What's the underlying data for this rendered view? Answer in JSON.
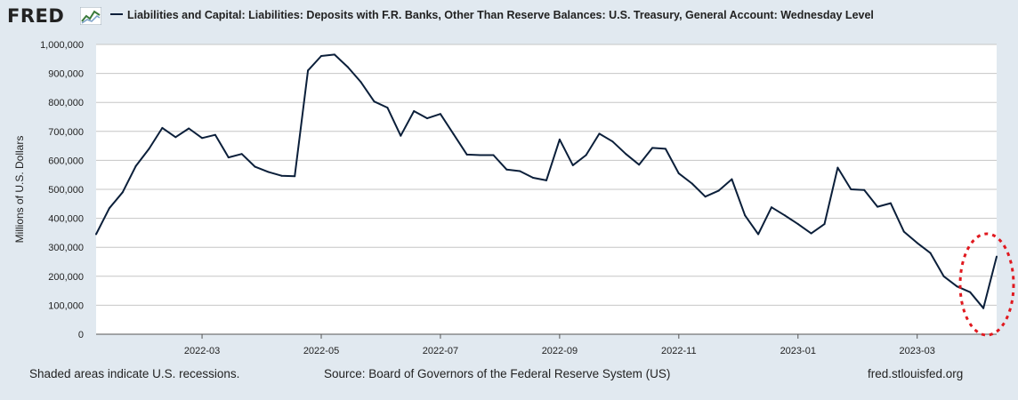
{
  "header": {
    "logo": "FRED"
  },
  "footer": {
    "recession_note": "Shaded areas indicate U.S. recessions.",
    "source": "Source: Board of Governors of the Federal Reserve System (US)",
    "url": "fred.stlouisfed.org"
  },
  "colors": {
    "line": "#0b1f3a",
    "annotation": "#e0191f",
    "background": "#e1e9f0"
  },
  "chart_data": {
    "type": "line",
    "title": "",
    "xlabel": "",
    "ylabel": "Millions of U.S. Dollars",
    "ylim": [
      0,
      1000000
    ],
    "y_ticks": [
      0,
      100000,
      200000,
      300000,
      400000,
      500000,
      600000,
      700000,
      800000,
      900000,
      1000000
    ],
    "y_tick_labels": [
      "0",
      "100,000",
      "200,000",
      "300,000",
      "400,000",
      "500,000",
      "600,000",
      "700,000",
      "800,000",
      "900,000",
      "1,000,000"
    ],
    "x_tick_labels": [
      "2022-03",
      "2022-05",
      "2022-07",
      "2022-09",
      "2022-11",
      "2023-01",
      "2023-03"
    ],
    "x_tick_index": [
      8,
      17,
      26,
      35,
      44,
      53,
      62
    ],
    "series": [
      {
        "name": "Liabilities and Capital: Liabilities: Deposits with F.R. Banks, Other Than Reserve Balances: U.S. Treasury, General Account: Wednesday Level",
        "values": [
          345000,
          435000,
          490000,
          580000,
          640000,
          712000,
          680000,
          710000,
          677000,
          688000,
          610000,
          622000,
          578000,
          560000,
          547000,
          545000,
          910000,
          960000,
          965000,
          922000,
          870000,
          803000,
          782000,
          685000,
          770000,
          745000,
          760000,
          690000,
          620000,
          618000,
          618000,
          568000,
          563000,
          540000,
          531000,
          672000,
          583000,
          618000,
          692000,
          665000,
          622000,
          585000,
          643000,
          640000,
          555000,
          520000,
          475000,
          495000,
          535000,
          410000,
          345000,
          438000,
          410000,
          380000,
          348000,
          380000,
          575000,
          500000,
          498000,
          440000,
          452000,
          354000,
          315000,
          280000,
          200000,
          165000,
          145000,
          90000,
          268000
        ]
      }
    ]
  }
}
